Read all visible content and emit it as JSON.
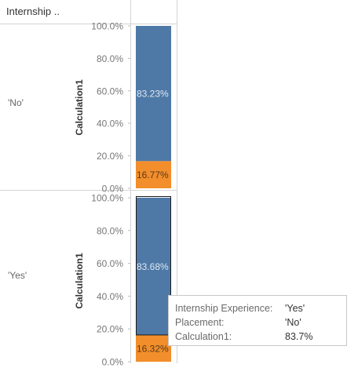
{
  "header": {
    "row_field_label": "Internship .."
  },
  "chart_data": {
    "type": "bar",
    "stacked": true,
    "ylabel": "Calculation1",
    "ylim": [
      0,
      100
    ],
    "yticks": [
      "100.0%",
      "80.0%",
      "60.0%",
      "40.0%",
      "20.0%",
      "0.0%"
    ],
    "panels": [
      {
        "row_label": "'No'",
        "segments": [
          {
            "value": 83.23,
            "label": "83.23%",
            "color": "#4e79a7",
            "position": "top"
          },
          {
            "value": 16.77,
            "label": "16.77%",
            "color": "#f28e2b",
            "position": "bottom"
          }
        ]
      },
      {
        "row_label": "'Yes'",
        "selected": true,
        "segments": [
          {
            "value": 83.68,
            "label": "83.68%",
            "color": "#4e79a7",
            "position": "top"
          },
          {
            "value": 16.32,
            "label": "16.32%",
            "color": "#f28e2b",
            "position": "bottom"
          }
        ]
      }
    ]
  },
  "tooltip": {
    "rows": [
      {
        "key": "Internship Experience:",
        "value": "'Yes'"
      },
      {
        "key": "Placement:",
        "value": "'No'"
      },
      {
        "key": "Calculation1:",
        "value": "83.7%"
      }
    ]
  }
}
